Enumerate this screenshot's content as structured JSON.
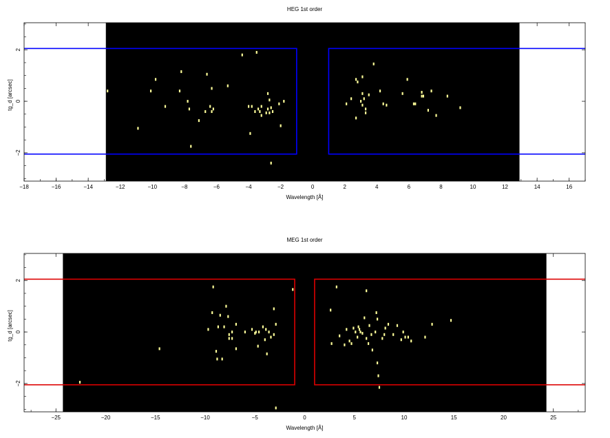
{
  "chart_data": [
    {
      "type": "scatter",
      "title": "HEG 1st order",
      "xlabel": "Wavelength [Å]",
      "ylabel": "tg_d [arcsec]",
      "xlim": [
        -18,
        17
      ],
      "ylim": [
        -3.1,
        3.05
      ],
      "xticks": [
        -18,
        -16,
        -14,
        -12,
        -10,
        -8,
        -6,
        -4,
        -2,
        0,
        2,
        4,
        6,
        8,
        10,
        12,
        14,
        16
      ],
      "yticks": [
        -2,
        0,
        2
      ],
      "coverage_range": [
        -12.9,
        12.9
      ],
      "coverage_color": "#000000",
      "point_color": "#ffff99",
      "region_color": "#0000ff",
      "regions": [
        {
          "x0": -23,
          "x1": -1,
          "y0": -2.05,
          "y1": 2.05
        },
        {
          "x0": 1,
          "x1": 23,
          "y0": -2.05,
          "y1": 2.05
        }
      ],
      "x": [
        -12.8,
        -10.9,
        -10.1,
        -9.8,
        -9.2,
        -8.3,
        -8.2,
        -7.8,
        -7.7,
        -7.6,
        -7.1,
        -6.7,
        -6.6,
        -6.4,
        -6.3,
        -6.3,
        -6.2,
        -5.3,
        -4.4,
        -4.0,
        -3.9,
        -3.8,
        -3.6,
        -3.5,
        -3.4,
        -3.3,
        -3.2,
        -3.2,
        -2.9,
        -2.8,
        -2.8,
        -2.7,
        -2.7,
        -2.6,
        -2.6,
        -2.5,
        -2.1,
        -2.0,
        -1.8,
        2.1,
        2.4,
        2.7,
        2.7,
        2.8,
        3.0,
        3.1,
        3.1,
        3.1,
        3.2,
        3.3,
        3.3,
        3.5,
        3.8,
        4.2,
        4.4,
        4.6,
        5.6,
        5.9,
        6.3,
        6.4,
        6.8,
        6.8,
        6.9,
        7.2,
        7.4,
        7.7,
        8.4,
        9.2
      ],
      "y": [
        0.4,
        -1.05,
        0.4,
        0.85,
        -0.2,
        0.4,
        1.15,
        0.0,
        -0.3,
        -1.75,
        -0.75,
        -0.4,
        1.05,
        -0.2,
        0.5,
        -0.4,
        -0.3,
        0.6,
        1.8,
        -0.2,
        -1.25,
        -0.2,
        -0.4,
        1.9,
        -0.3,
        -0.4,
        -0.2,
        -0.55,
        -0.45,
        0.3,
        -0.3,
        -0.45,
        0.05,
        -2.4,
        -0.25,
        -0.4,
        -0.1,
        -0.95,
        0.0,
        -0.1,
        0.1,
        0.85,
        -0.65,
        0.75,
        0.0,
        0.3,
        -0.15,
        0.95,
        0.1,
        -0.3,
        -0.45,
        0.25,
        1.45,
        0.4,
        -0.1,
        -0.15,
        0.3,
        0.85,
        -0.1,
        -0.1,
        0.35,
        0.2,
        0.2,
        -0.35,
        0.4,
        -0.55,
        0.2,
        -0.25
      ]
    },
    {
      "type": "scatter",
      "title": "MEG 1st order",
      "xlabel": "Wavelength [Å]",
      "ylabel": "tg_d [arcsec]",
      "xlim": [
        -28.2,
        28.2
      ],
      "ylim": [
        -3.1,
        3.05
      ],
      "xticks": [
        -25,
        -20,
        -15,
        -10,
        -5,
        0,
        5,
        10,
        15,
        20,
        25
      ],
      "yticks": [
        -2,
        0,
        2
      ],
      "coverage_range": [
        -24.3,
        24.3
      ],
      "coverage_color": "#000000",
      "point_color": "#ffff99",
      "region_color": "#dd0000",
      "regions": [
        {
          "x0": -35,
          "x1": -1,
          "y0": -2.05,
          "y1": 2.05
        },
        {
          "x0": 1,
          "x1": 35,
          "y0": -2.05,
          "y1": 2.05
        }
      ],
      "x": [
        -22.6,
        -14.6,
        -9.7,
        -9.3,
        -9.2,
        -8.9,
        -8.8,
        -8.7,
        -8.5,
        -8.3,
        -8.1,
        -7.9,
        -7.7,
        -7.6,
        -7.6,
        -7.3,
        -7.3,
        -6.9,
        -6.9,
        -6.0,
        -5.3,
        -5.0,
        -4.9,
        -4.7,
        -4.6,
        -4.2,
        -4.0,
        -3.9,
        -3.8,
        -3.6,
        -3.4,
        -3.1,
        -3.1,
        -2.9,
        -2.9,
        -1.2,
        2.6,
        2.7,
        3.2,
        3.5,
        4.0,
        4.2,
        4.5,
        4.7,
        4.9,
        5.1,
        5.3,
        5.4,
        5.5,
        5.6,
        5.8,
        6.0,
        6.2,
        6.2,
        6.4,
        6.5,
        6.7,
        6.8,
        7.1,
        7.2,
        7.3,
        7.3,
        7.4,
        7.5,
        7.8,
        8.0,
        8.1,
        8.4,
        8.9,
        9.3,
        9.7,
        9.9,
        10.1,
        10.4,
        10.7,
        12.1,
        12.8,
        14.7
      ],
      "y": [
        -1.95,
        -0.65,
        0.1,
        0.75,
        1.75,
        -0.75,
        -1.05,
        0.2,
        0.65,
        -1.05,
        0.2,
        1.0,
        0.6,
        -0.25,
        -0.1,
        0.0,
        -0.25,
        -0.65,
        0.3,
        0.0,
        0.1,
        -0.05,
        0.0,
        -0.55,
        0.0,
        0.2,
        -0.3,
        0.1,
        -0.85,
        0.0,
        -0.2,
        0.9,
        -0.1,
        -2.95,
        0.3,
        1.65,
        0.85,
        -0.45,
        1.75,
        -0.15,
        -0.5,
        0.1,
        -0.35,
        -0.45,
        0.15,
        0.0,
        -0.2,
        0.2,
        0.1,
        0.0,
        -0.05,
        0.55,
        1.6,
        -0.25,
        -0.45,
        0.25,
        -0.1,
        -0.7,
        0.0,
        0.75,
        -1.2,
        0.5,
        -1.7,
        -2.15,
        -0.25,
        -0.1,
        0.15,
        0.3,
        -0.1,
        0.25,
        -0.3,
        0.0,
        -0.2,
        -0.2,
        -0.35,
        -0.2,
        0.3,
        0.45
      ]
    }
  ]
}
